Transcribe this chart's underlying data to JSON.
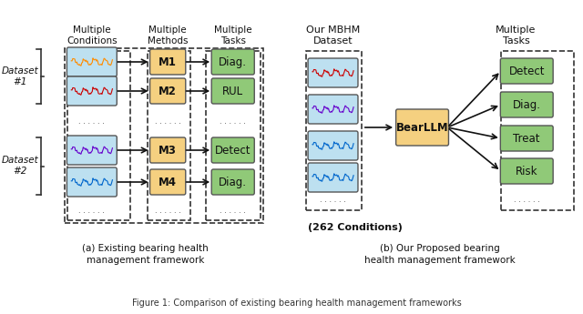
{
  "title": "Figure 1: Comparison of existing bearing health management frameworks",
  "bg_color": "#ffffff",
  "signal_colors": {
    "orange": "#FF8C00",
    "red": "#CC0000",
    "purple": "#6600CC",
    "blue": "#0066CC"
  },
  "box_colors": {
    "signal_bg": "#ADD8E6",
    "method_bg": "#F5D080",
    "task_bg": "#90C978",
    "bearllm_bg": "#F5D080"
  },
  "left_panel": {
    "datasets": [
      "Dataset\n#1",
      "Dataset\n#2"
    ],
    "methods": [
      "M1",
      "M2",
      "M3",
      "M4"
    ],
    "tasks": [
      "Diag.",
      "RUL",
      "Detect",
      "Diag."
    ],
    "header": [
      "Multiple\nConditions",
      "Multiple\nMethods",
      "Multiple\nTasks"
    ],
    "caption": "(a) Existing bearing health\nmanagement framework"
  },
  "right_panel": {
    "dataset_label": "Our MBHM\nDataset",
    "bearllm_label": "BearLLM",
    "conditions_label": "(262 Conditions)",
    "tasks_header": "Multiple\nTasks",
    "tasks": [
      "Detect",
      "Diag.",
      "Treat",
      "Risk"
    ],
    "caption": "(b) Our Proposed bearing\nhealth management framework"
  }
}
